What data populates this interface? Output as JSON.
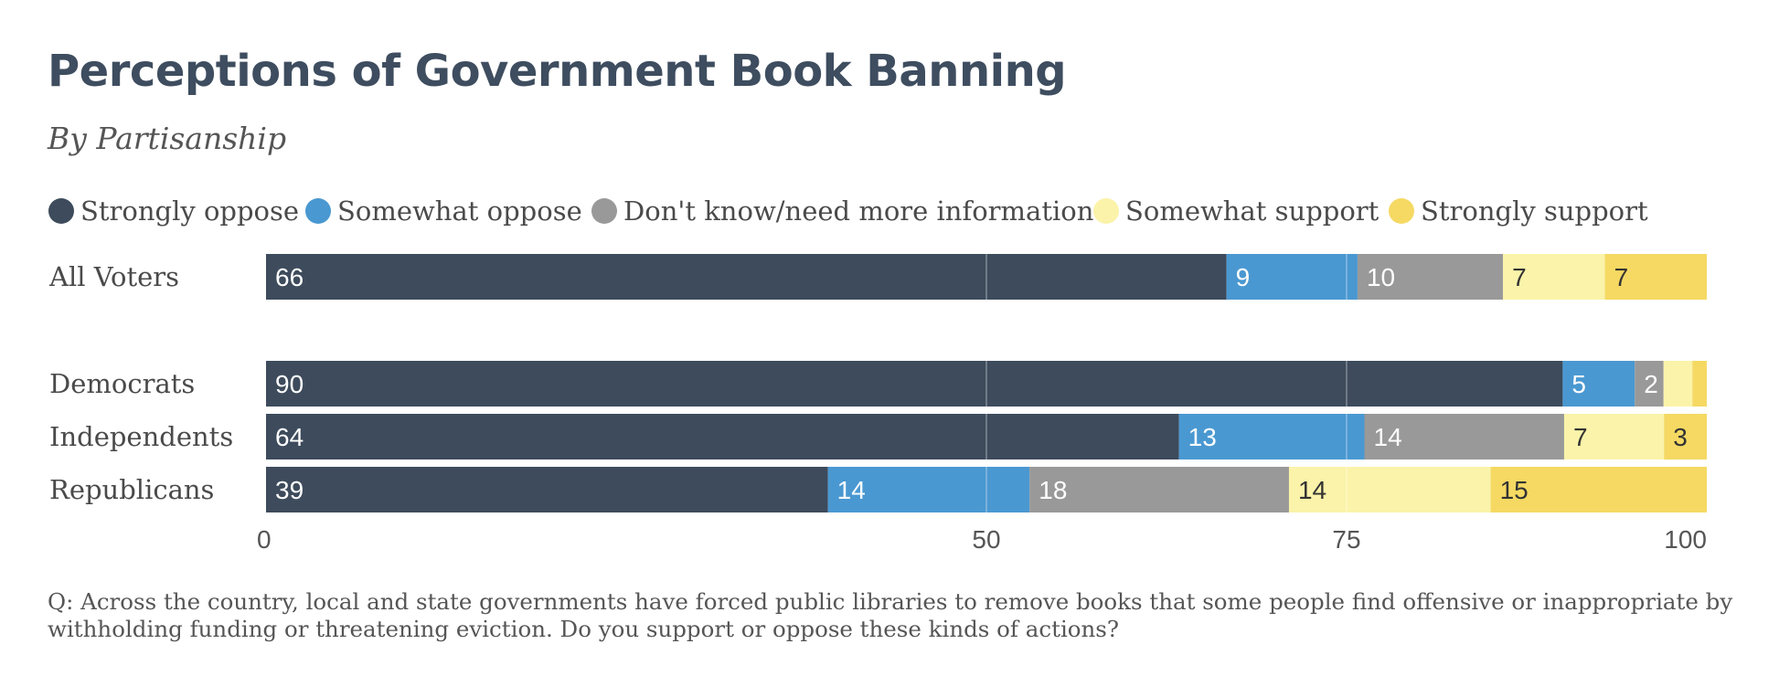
{
  "title": "Perceptions of Government Book Banning",
  "subtitle": "By Partisanship",
  "footnote": "Q: Across the country, local and state governments have forced public libraries to remove books that some people find offensive or inappropriate by withholding funding or threatening eviction. Do you support or oppose these kinds of actions?",
  "chart_data": {
    "type": "bar",
    "orientation": "horizontal",
    "stacked": true,
    "categories": [
      "All Voters",
      "Democrats",
      "Independents",
      "Republicans"
    ],
    "series": [
      {
        "name": "Strongly oppose",
        "color": "#3d4b5c",
        "text_color": "#ffffff",
        "values": [
          66,
          90,
          64,
          39
        ]
      },
      {
        "name": "Somewhat oppose",
        "color": "#4a98d1",
        "text_color": "#ffffff",
        "values": [
          9,
          5,
          13,
          14
        ]
      },
      {
        "name": "Don't know/need more information",
        "color": "#999999",
        "text_color": "#ffffff",
        "values": [
          10,
          2,
          14,
          18
        ]
      },
      {
        "name": "Somewhat support",
        "color": "#faf3a9",
        "text_color": "#333333",
        "values": [
          7,
          2,
          7,
          14
        ]
      },
      {
        "name": "Strongly support",
        "color": "#f5d963",
        "text_color": "#333333",
        "values": [
          7,
          1,
          3,
          15
        ]
      }
    ],
    "hidden_labels": [
      [
        1,
        3
      ],
      [
        1,
        4
      ]
    ],
    "xlim": [
      0,
      100
    ],
    "x_ticks": [
      0,
      50,
      75,
      100
    ],
    "gridlines": [
      50,
      75
    ],
    "legend_position": "top"
  }
}
